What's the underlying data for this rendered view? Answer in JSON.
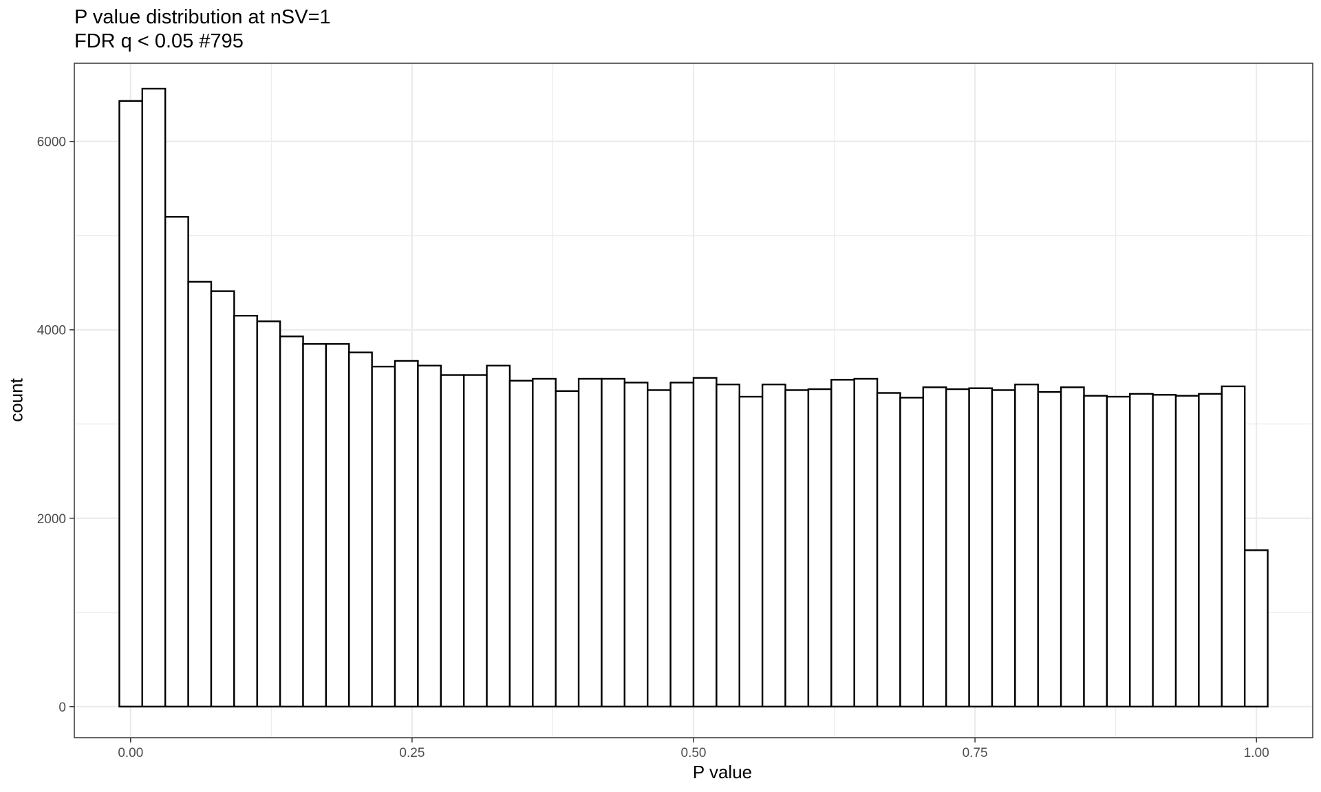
{
  "chart_data": {
    "type": "bar",
    "title": "P value distribution at nSV=1",
    "subtitle": "FDR q < 0.05 #795",
    "xlabel": "P value",
    "ylabel": "count",
    "bin_width": 0.0204,
    "xlim": [
      -0.05,
      1.05
    ],
    "ylim": [
      -330,
      6830
    ],
    "x_ticks": [
      0.0,
      0.25,
      0.5,
      0.75,
      1.0
    ],
    "x_tick_labels": [
      "0.00",
      "0.25",
      "0.50",
      "0.75",
      "1.00"
    ],
    "y_ticks": [
      0,
      2000,
      4000,
      6000
    ],
    "y_tick_labels": [
      "0",
      "2000",
      "4000",
      "6000"
    ],
    "grid": true,
    "bins_start": -0.01,
    "values": [
      6430,
      6560,
      5200,
      4510,
      4410,
      4150,
      4090,
      3930,
      3850,
      3850,
      3760,
      3610,
      3670,
      3620,
      3520,
      3520,
      3620,
      3460,
      3480,
      3350,
      3480,
      3480,
      3440,
      3360,
      3440,
      3490,
      3420,
      3290,
      3420,
      3360,
      3370,
      3470,
      3480,
      3330,
      3280,
      3390,
      3370,
      3380,
      3360,
      3420,
      3340,
      3390,
      3300,
      3290,
      3320,
      3310,
      3300,
      3320,
      3400,
      1660
    ],
    "bar_fill": "#ffffff",
    "bar_stroke": "#000000",
    "grid_color": "#ebebeb",
    "panel_border": "#333333"
  }
}
